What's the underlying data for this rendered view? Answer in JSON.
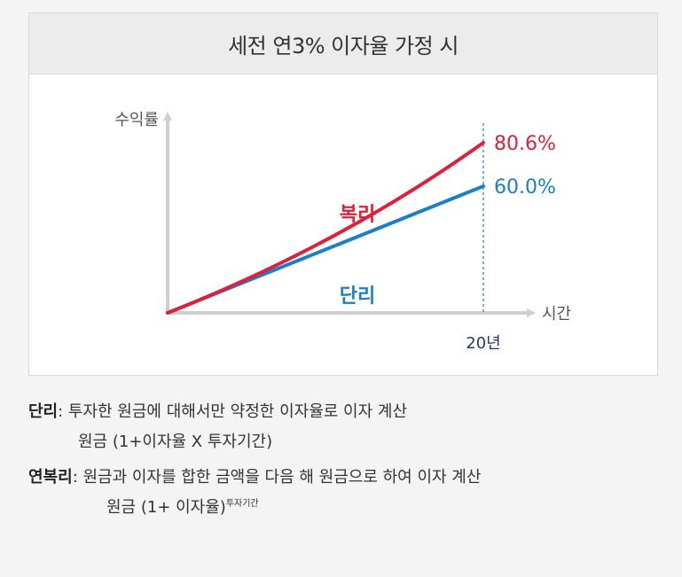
{
  "colors": {
    "compound": "#e0203a",
    "simple": "#1a7fc9",
    "axis": "#cfcfcf",
    "axis_label": "#555555",
    "tick_label": "#1f3a6e"
  },
  "chart_data": {
    "type": "line",
    "title": "세전 연3% 이자율 가정 시",
    "ylabel": "수익률",
    "xlabel": "시간",
    "x_tick_label": "20년",
    "x": [
      0,
      20
    ],
    "xlim": [
      0,
      20
    ],
    "ylim": [
      0,
      80.6
    ],
    "grid": false,
    "series": [
      {
        "name": "복리",
        "rate": 3,
        "end_value": 80.6,
        "end_label": "80.6%"
      },
      {
        "name": "단리",
        "rate": 3,
        "end_value": 60.0,
        "end_label": "60.0%"
      }
    ]
  },
  "notes": {
    "simple": {
      "key": "단리",
      "desc": ": 투자한 원금에 대해서만 약정한 이자율로 이자 계산",
      "formula": "원금 (1+이자율 X 투자기간)"
    },
    "compound": {
      "key": "연복리",
      "desc": ": 원금과 이자를 합한 금액을 다음 해 원금으로 하여 이자 계산",
      "formula": "원금 (1+ 이자율)",
      "formula_sup": "투자기간"
    }
  }
}
